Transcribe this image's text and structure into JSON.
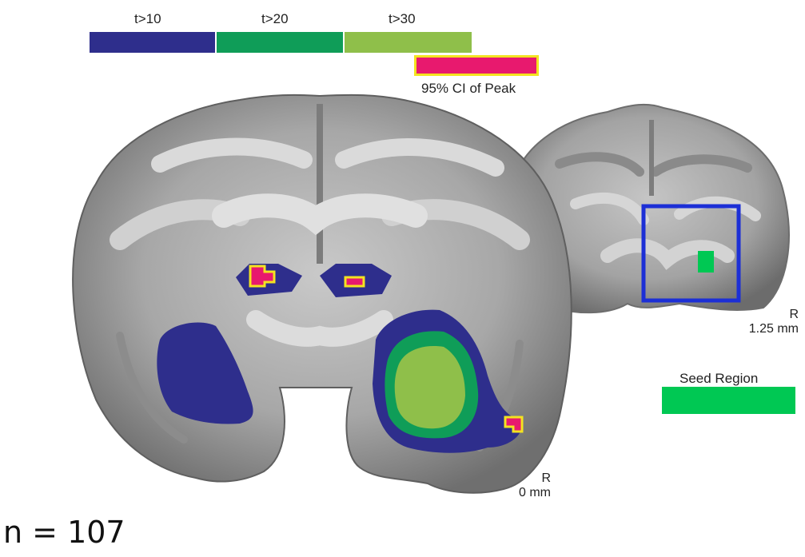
{
  "legend": {
    "thresholds": [
      {
        "label": "t>10",
        "color": "#2e2e8c"
      },
      {
        "label": "t>20",
        "color": "#0f9d58"
      },
      {
        "label": "t>30",
        "color": "#8fbf4a"
      }
    ],
    "ci_peak": {
      "label": "95% CI of Peak",
      "fill": "#e8196e",
      "border": "#f3e320"
    },
    "seed": {
      "label": "Seed Region",
      "color": "#00c853"
    }
  },
  "main_slice": {
    "orientation": "R",
    "position": "0 mm"
  },
  "small_slice": {
    "orientation": "R",
    "position": "1.25 mm",
    "box_color": "#1c2fd6"
  },
  "n_label": "n = 107"
}
